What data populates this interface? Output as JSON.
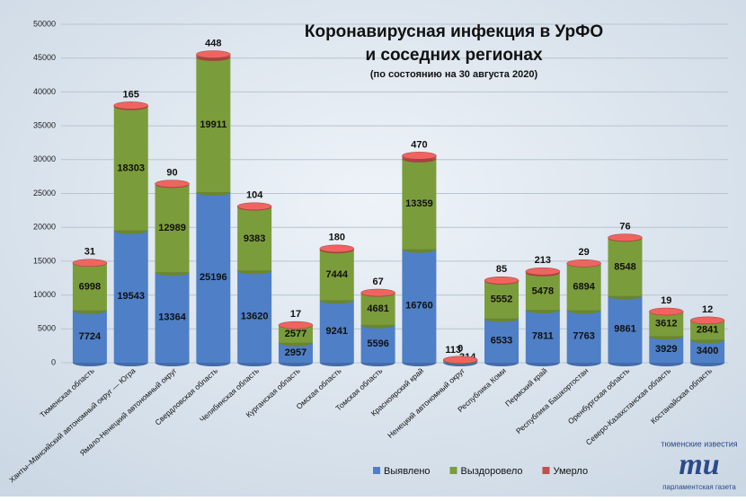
{
  "chart_data": {
    "type": "stacked-cylinder",
    "title": [
      "Коронавирусная инфекция в УрФО",
      "и соседних регионах"
    ],
    "subtitle": "(по состоянию на 30 августа 2020)",
    "categories": [
      "Тюменская область",
      "Ханты–Мансийский автономный округ — Югра",
      "Ямало-Ненецкий автономный округ",
      "Свердловская область",
      "Челябинская область",
      "Курганская область",
      "Омская область",
      "Томская область",
      "Красноярский край",
      "Ненецкий автономный округ",
      "Республика Коми",
      "Пермский край",
      "Республика Башкортостан",
      "Оренбургская область",
      "Северо-Казахстанская область",
      "Костанайская область"
    ],
    "series": [
      {
        "name": "Выявлено",
        "color": "#4f7fc6",
        "values": [
          7724,
          19543,
          13364,
          25196,
          13620,
          2957,
          9241,
          5596,
          16760,
          314,
          6533,
          7811,
          7763,
          9861,
          3929,
          3400
        ]
      },
      {
        "name": "Выздоровело",
        "color": "#7b9c3a",
        "values": [
          6998,
          18303,
          12989,
          19911,
          9383,
          2577,
          7444,
          4681,
          13359,
          113,
          5552,
          5478,
          6894,
          8548,
          3612,
          2841
        ]
      },
      {
        "name": "Умерло",
        "color": "#c0504d",
        "values": [
          31,
          165,
          90,
          448,
          104,
          17,
          180,
          67,
          470,
          0,
          85,
          213,
          29,
          76,
          19,
          12
        ]
      }
    ],
    "ylim": [
      0,
      50000
    ],
    "yticks": [
      0,
      5000,
      10000,
      15000,
      20000,
      25000,
      30000,
      35000,
      40000,
      45000,
      50000
    ],
    "grid": true,
    "legend": "bottom"
  },
  "logo": {
    "top": "тюменские известия",
    "mark": "ти",
    "bottom": "парламентская газета"
  }
}
